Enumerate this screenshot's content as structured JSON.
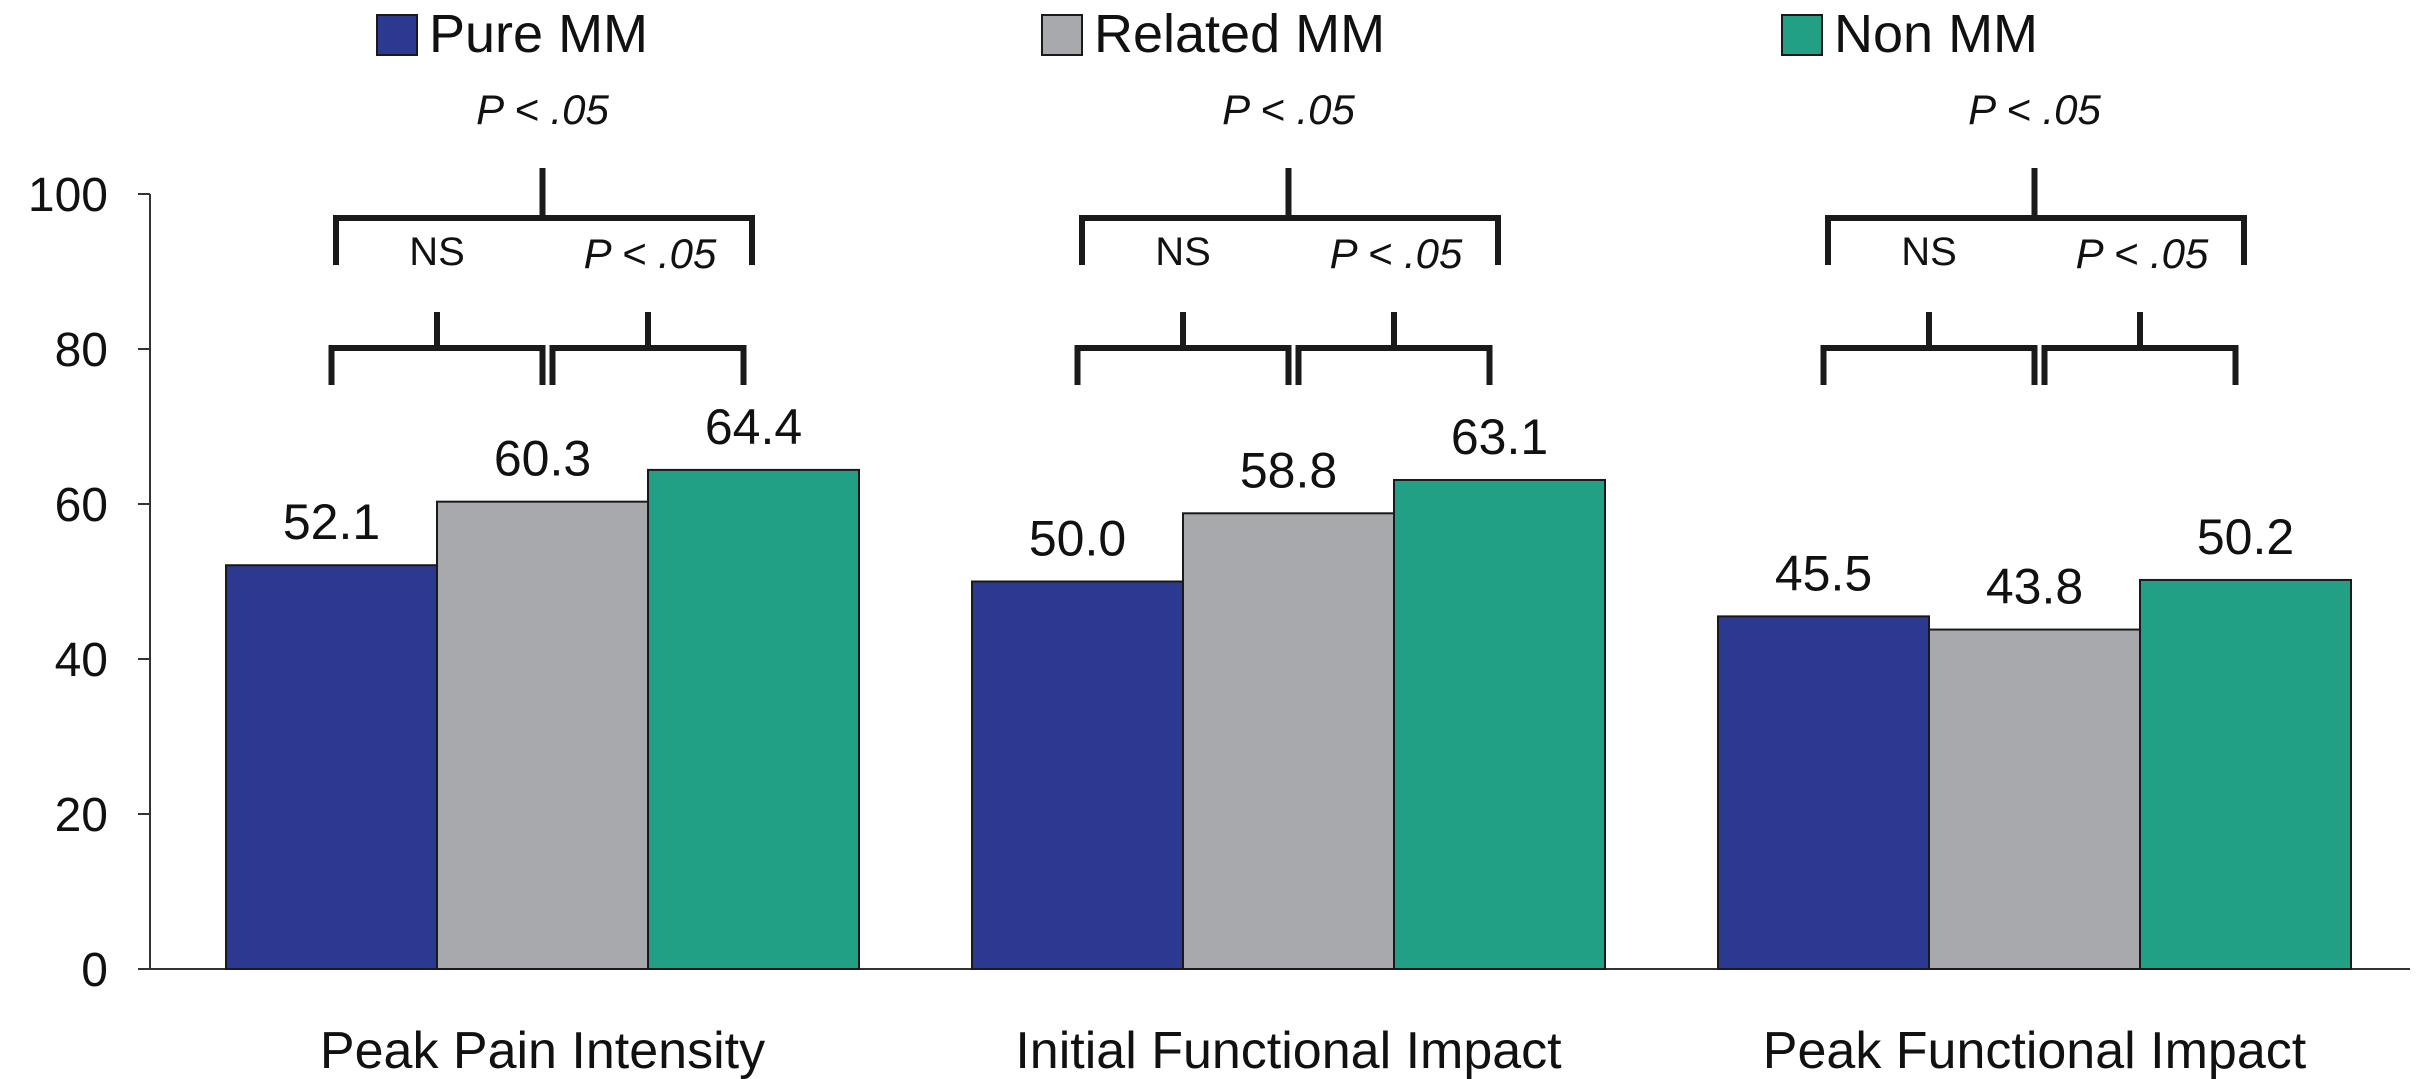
{
  "chart_data": {
    "type": "bar",
    "categories": [
      "Peak Pain Intensity",
      "Initial Functional Impact",
      "Peak Functional Impact"
    ],
    "series": [
      {
        "name": "Pure MM",
        "color": "#2b3990",
        "values": [
          52.1,
          50.0,
          45.5
        ],
        "labels": [
          "52.1",
          "50.0",
          "45.5"
        ]
      },
      {
        "name": "Related MM",
        "color": "#a7a9ac",
        "values": [
          60.3,
          58.8,
          43.8
        ],
        "labels": [
          "60.3",
          "58.8",
          "43.8"
        ]
      },
      {
        "name": "Non MM",
        "color": "#21a086",
        "values": [
          64.4,
          63.1,
          50.2
        ],
        "labels": [
          "64.4",
          "63.1",
          "50.2"
        ]
      }
    ],
    "ylim": [
      0,
      100
    ],
    "yticks": [
      "0",
      "20",
      "40",
      "60",
      "80",
      "100"
    ],
    "legend_position": "top",
    "grid": false,
    "annotations": {
      "overall": "P < .05",
      "pure_vs_related": "NS",
      "related_vs_non": "P < .05"
    }
  }
}
